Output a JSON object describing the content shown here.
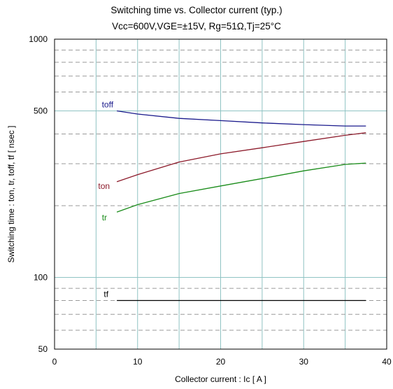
{
  "chart_data": {
    "type": "line",
    "title": "Switching time  vs.  Collector current  (typ.)",
    "subtitle": "Vcc=600V,VGE=±15V, Rg=51Ω,Tj=25°C",
    "xlabel": "Collector current  :  Ic  [ A ]",
    "ylabel": "Switching time  :  ton, tr, toff, tf  [ nsec ]",
    "xlim": [
      0,
      40
    ],
    "ylim": [
      50,
      1000
    ],
    "yscale": "log",
    "x_ticks": [
      0,
      10,
      20,
      30,
      40
    ],
    "x_tick_labels": [
      "0",
      "10",
      "20",
      "30",
      "40"
    ],
    "y_ticks": [
      50,
      100,
      500,
      1000
    ],
    "y_tick_labels": [
      "50",
      "100",
      "500",
      "1000"
    ],
    "grid": true,
    "series": [
      {
        "name": "toff",
        "color": "#1a1a8c",
        "x": [
          7.5,
          10,
          15,
          20,
          25,
          30,
          35,
          37.5
        ],
        "y": [
          500,
          485,
          465,
          455,
          445,
          438,
          432,
          432
        ]
      },
      {
        "name": "ton",
        "color": "#8c1a2a",
        "x": [
          7.5,
          10,
          15,
          20,
          25,
          30,
          35,
          37.5
        ],
        "y": [
          252,
          270,
          305,
          330,
          350,
          372,
          395,
          405
        ]
      },
      {
        "name": "tr",
        "color": "#1a8c1a",
        "x": [
          7.5,
          10,
          15,
          20,
          25,
          30,
          35,
          37.5
        ],
        "y": [
          188,
          202,
          225,
          242,
          260,
          280,
          298,
          302
        ]
      },
      {
        "name": "tf",
        "color": "#000000",
        "x": [
          7.5,
          37.5
        ],
        "y": [
          80,
          80
        ]
      }
    ]
  }
}
